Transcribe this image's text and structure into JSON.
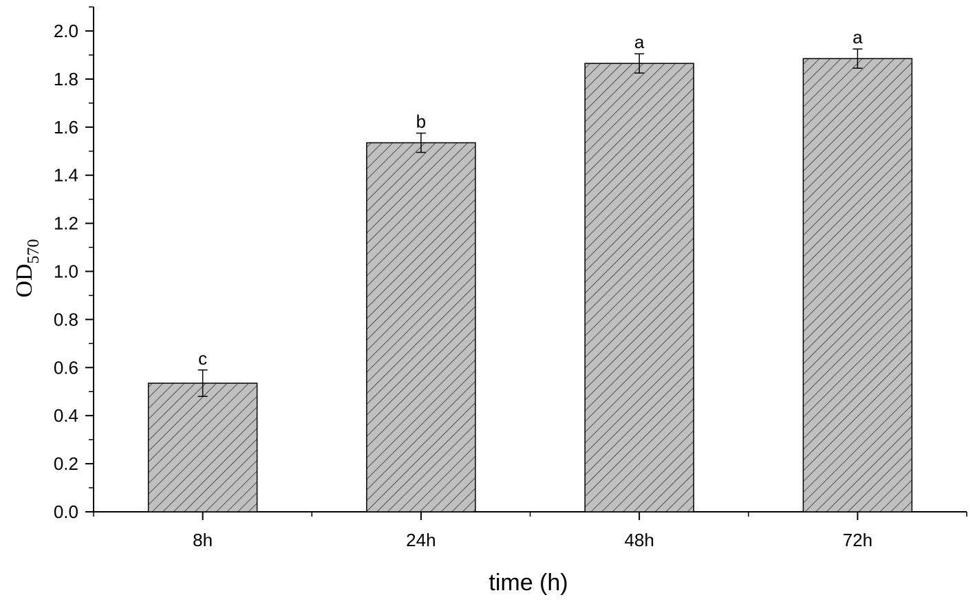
{
  "chart_data": {
    "type": "bar",
    "categories": [
      "8h",
      "24h",
      "48h",
      "72h"
    ],
    "values": [
      0.535,
      1.535,
      1.865,
      1.885
    ],
    "errors": [
      0.055,
      0.04,
      0.04,
      0.04
    ],
    "significance": [
      "c",
      "b",
      "a",
      "a"
    ],
    "xlabel": "time (h)",
    "ylabel": {
      "main": "OD",
      "sub": "570"
    },
    "ylim": [
      0.0,
      2.0
    ],
    "yticks": [
      "0.0",
      "0.2",
      "0.4",
      "0.6",
      "0.8",
      "1.0",
      "1.2",
      "1.4",
      "1.6",
      "1.8",
      "2.0"
    ],
    "grid": false,
    "bar_color": "#c0c0c0",
    "hatch_color": "#333333",
    "hatch": "diagonal"
  }
}
